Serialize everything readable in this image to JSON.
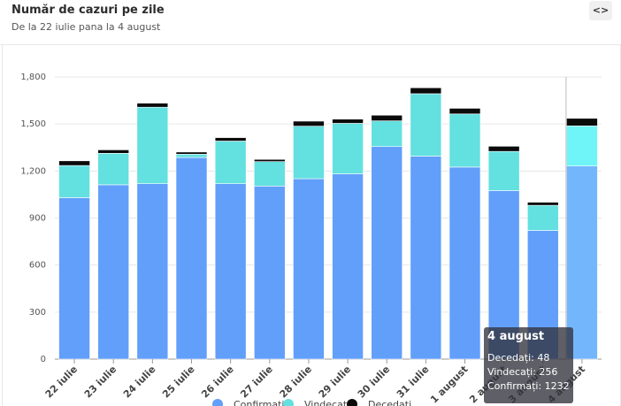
{
  "header": {
    "title": "Număr de cazuri pe zile",
    "subtitle": "De la 22 iulie pana la 4 august",
    "expand_icon_label": "<>"
  },
  "colors": {
    "confirmati": "#619ffa",
    "vindecati": "#63e0e0",
    "decedati": "#0b0b0b",
    "confirmati_hover": "#74b6fc",
    "vindecati_hover": "#6ff4f7"
  },
  "tooltip": {
    "title": "4 august",
    "lines": [
      "Decedați: 48",
      "Vindecați: 256",
      "Confirmați: 1232"
    ]
  },
  "chart_data": {
    "type": "bar",
    "stacked": true,
    "categories": [
      "22 iulie",
      "23 iulie",
      "24 iulie",
      "25 iulie",
      "26 iulie",
      "27 iulie",
      "28 iulie",
      "29 iulie",
      "30 iulie",
      "31 iulie",
      "1 august",
      "2 august",
      "3 august",
      "4 august"
    ],
    "series": [
      {
        "name": "Confirmați",
        "values": [
          1030,
          1112,
          1119,
          1286,
          1119,
          1104,
          1151,
          1182,
          1356,
          1295,
          1225,
          1075,
          821,
          1232
        ]
      },
      {
        "name": "Vindecați",
        "values": [
          205,
          201,
          488,
          21,
          272,
          156,
          335,
          322,
          164,
          398,
          339,
          250,
          160,
          256
        ]
      },
      {
        "name": "Decedați",
        "values": [
          30,
          22,
          26,
          14,
          22,
          14,
          32,
          27,
          36,
          38,
          36,
          33,
          20,
          48
        ]
      }
    ],
    "ylim": [
      0,
      1800
    ],
    "yticks": [
      "0",
      "300",
      "600",
      "900",
      "1,200",
      "1,500",
      "1,800"
    ],
    "ytick_values": [
      0,
      300,
      600,
      900,
      1200,
      1500,
      1800
    ],
    "grid": true,
    "legend": "bottom",
    "highlighted_category": "4 august"
  }
}
